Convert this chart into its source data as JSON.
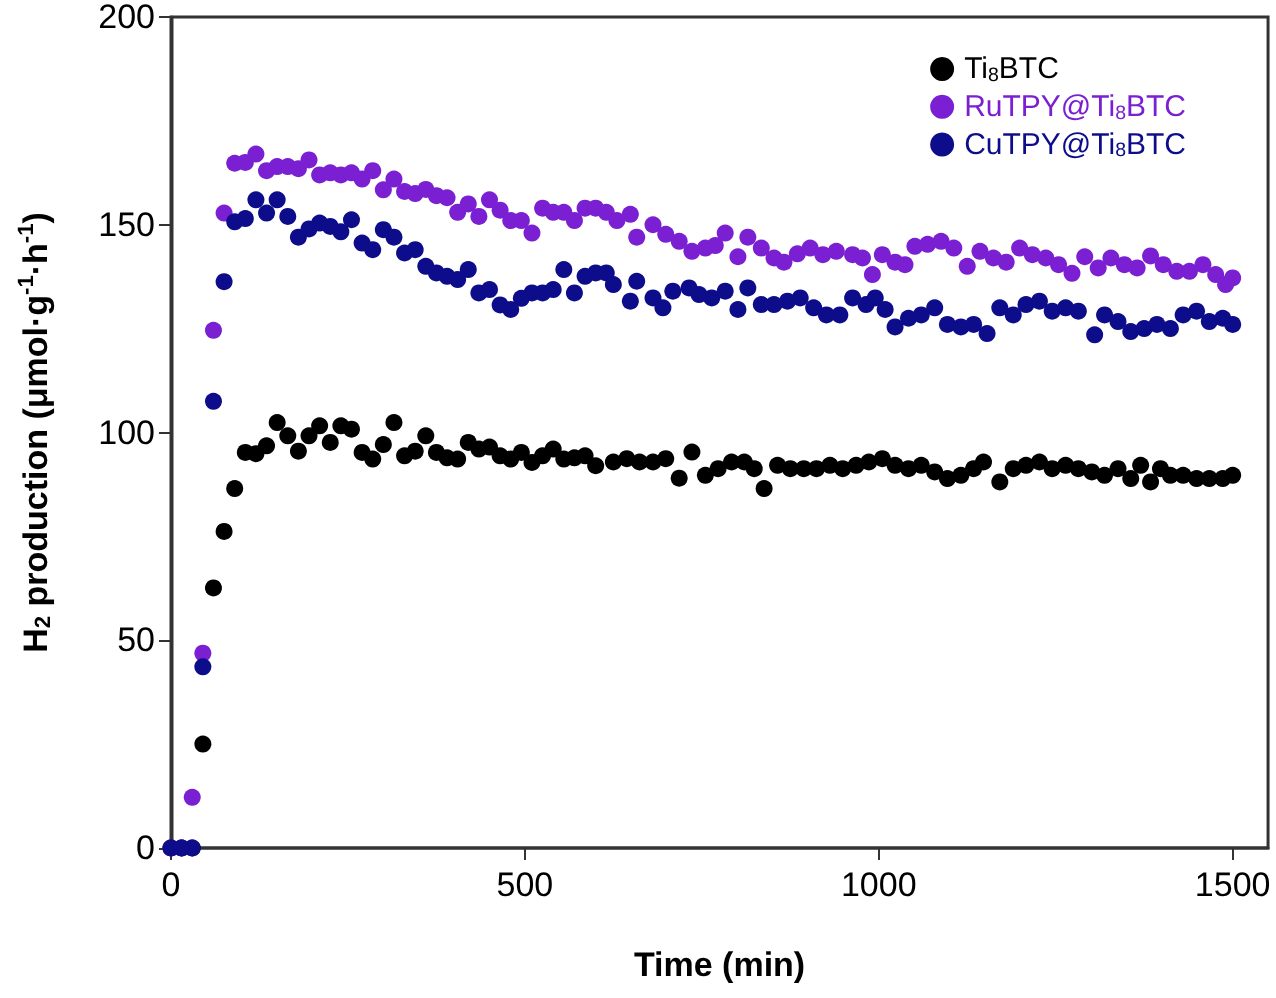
{
  "chart_data": {
    "type": "scatter",
    "xlabel": "Time (min)",
    "ylabel": "H$_{2}$ production (μmol·g$^{-1}$·h$^{-1}$)",
    "xlim": [
      0,
      1550
    ],
    "xticks": [
      0,
      500,
      1000,
      1500
    ],
    "ylim": [
      0,
      200
    ],
    "yticks": [
      0,
      50,
      100,
      150,
      200
    ],
    "grid": false,
    "legend": "top right",
    "marker": "circle",
    "series": [
      {
        "name": "Ti$_{8}$BTC",
        "color": "#000000",
        "x": [
          0,
          15,
          30,
          45,
          60,
          75,
          90,
          105,
          120,
          135,
          150,
          165,
          180,
          195,
          210,
          225,
          240,
          255,
          270,
          285,
          300,
          315,
          330,
          345,
          360,
          375,
          390,
          405,
          420,
          435,
          450,
          465,
          480,
          495,
          510,
          525,
          540,
          555,
          570,
          585,
          600,
          625,
          644,
          662,
          681,
          699,
          718,
          736,
          755,
          773,
          792,
          810,
          824,
          838,
          857,
          875,
          894,
          912,
          931,
          949,
          968,
          986,
          1005,
          1023,
          1042,
          1060,
          1079,
          1097,
          1116,
          1134,
          1148,
          1171,
          1190,
          1208,
          1227,
          1245,
          1264,
          1282,
          1301,
          1319,
          1338,
          1356,
          1370,
          1384,
          1398,
          1412,
          1430,
          1449,
          1467,
          1486,
          1500
        ],
        "values": [
          0,
          0,
          0,
          25,
          62.6,
          76.2,
          86.5,
          95.2,
          94.9,
          96.8,
          102.4,
          99.2,
          95.5,
          99.2,
          101.6,
          97.6,
          101.6,
          100.8,
          95.2,
          93.6,
          97.1,
          102.4,
          94.4,
          95.5,
          99.2,
          95.2,
          93.9,
          93.6,
          97.6,
          96,
          96.5,
          94.4,
          93.6,
          95.2,
          92.8,
          94.4,
          96,
          93.6,
          93.9,
          94.4,
          92,
          92.9,
          93.7,
          92.9,
          92.9,
          93.7,
          89,
          95.3,
          89.7,
          91.3,
          92.9,
          92.9,
          91.3,
          86.5,
          92.1,
          91.3,
          91.3,
          91.3,
          92.1,
          91.3,
          92.1,
          92.9,
          93.7,
          92.1,
          91.3,
          92.1,
          90.5,
          88.9,
          89.7,
          91.3,
          92.9,
          88.1,
          91.3,
          92.1,
          92.9,
          91.3,
          92.1,
          91.3,
          90.5,
          89.7,
          91.3,
          88.9,
          92.1,
          88.1,
          91.3,
          89.7,
          89.7,
          88.9,
          88.9,
          88.9,
          89.7
        ]
      },
      {
        "name": "RuTPY@Ti$_{8}$BTC",
        "color": "#7a1fd2",
        "x": [
          0,
          15,
          30,
          45,
          60,
          75,
          90,
          105,
          120,
          135,
          150,
          165,
          180,
          195,
          210,
          225,
          240,
          255,
          270,
          285,
          300,
          315,
          330,
          345,
          360,
          375,
          390,
          405,
          420,
          435,
          450,
          465,
          480,
          495,
          510,
          525,
          540,
          555,
          570,
          585,
          600,
          615,
          630,
          649,
          658,
          681,
          699,
          718,
          736,
          755,
          769,
          783,
          801,
          815,
          834,
          852,
          866,
          885,
          903,
          921,
          940,
          963,
          977,
          991,
          1005,
          1023,
          1037,
          1051,
          1069,
          1088,
          1106,
          1125,
          1143,
          1162,
          1180,
          1199,
          1217,
          1236,
          1254,
          1273,
          1291,
          1310,
          1328,
          1347,
          1365,
          1384,
          1402,
          1421,
          1439,
          1458,
          1476,
          1490,
          1500
        ],
        "values": [
          0,
          0,
          12.2,
          46.9,
          124.6,
          152.8,
          164.8,
          165,
          167,
          163,
          164,
          164,
          163.5,
          165.6,
          162,
          162.5,
          162,
          162.5,
          161,
          163,
          158.4,
          161,
          158,
          157.5,
          158.5,
          157,
          156.5,
          153,
          155,
          152,
          156,
          153.5,
          151,
          151,
          148,
          154,
          153,
          153,
          151,
          154,
          154,
          153,
          151,
          152.5,
          147,
          150,
          147.7,
          146,
          143.6,
          144.4,
          145,
          148,
          142.3,
          147,
          144.4,
          142,
          141,
          143,
          144.4,
          142.8,
          143.6,
          142.8,
          142,
          138,
          142.8,
          141,
          140.4,
          144.8,
          145.3,
          146,
          144.4,
          140,
          143.6,
          142,
          141,
          144.4,
          142.8,
          142,
          140.4,
          138.3,
          142.3,
          139.6,
          142,
          140.4,
          139.6,
          142.5,
          140.4,
          138.8,
          138.8,
          140.4,
          138,
          135.6,
          137.2
        ]
      },
      {
        "name": "CuTPY@Ti$_{8}$BTC",
        "color": "#0d0d8c",
        "x": [
          0,
          15,
          30,
          45,
          60,
          75,
          90,
          105,
          120,
          135,
          150,
          165,
          180,
          195,
          210,
          225,
          240,
          255,
          270,
          285,
          300,
          315,
          330,
          345,
          360,
          375,
          390,
          405,
          420,
          435,
          450,
          465,
          480,
          495,
          510,
          525,
          540,
          555,
          570,
          585,
          600,
          615,
          625,
          649,
          658,
          681,
          695,
          709,
          732,
          746,
          764,
          783,
          801,
          815,
          834,
          852,
          871,
          889,
          908,
          926,
          945,
          963,
          982,
          995,
          1009,
          1023,
          1042,
          1060,
          1079,
          1097,
          1116,
          1134,
          1153,
          1171,
          1190,
          1208,
          1227,
          1245,
          1264,
          1282,
          1305,
          1319,
          1338,
          1356,
          1375,
          1393,
          1412,
          1430,
          1449,
          1467,
          1486,
          1500
        ],
        "values": [
          0,
          0,
          0,
          43.6,
          107.5,
          136.3,
          150.7,
          151.5,
          156,
          152.8,
          156,
          152,
          147,
          149,
          150.4,
          149.6,
          148.3,
          151.2,
          145.6,
          144,
          148.8,
          147,
          143.2,
          144,
          140,
          138.4,
          137.6,
          136.8,
          139.2,
          133.6,
          134.4,
          130.7,
          129.6,
          132.3,
          133.6,
          133.6,
          134.4,
          139.2,
          133.6,
          137.6,
          138.4,
          138.4,
          135.6,
          131.6,
          136.4,
          132.4,
          130,
          134,
          134.8,
          133.2,
          132.4,
          134,
          129.6,
          134.8,
          130.8,
          130.8,
          131.6,
          132.4,
          130,
          128.3,
          128.3,
          132.4,
          130.8,
          132.4,
          129.6,
          125.4,
          127.5,
          128.3,
          130,
          126,
          125.4,
          126,
          123.8,
          130,
          128.3,
          130.8,
          131.6,
          129.2,
          130,
          129.2,
          123.5,
          128.3,
          126.7,
          124.3,
          125,
          126,
          125,
          128.3,
          129.2,
          126.7,
          127.5,
          126
        ]
      }
    ]
  }
}
